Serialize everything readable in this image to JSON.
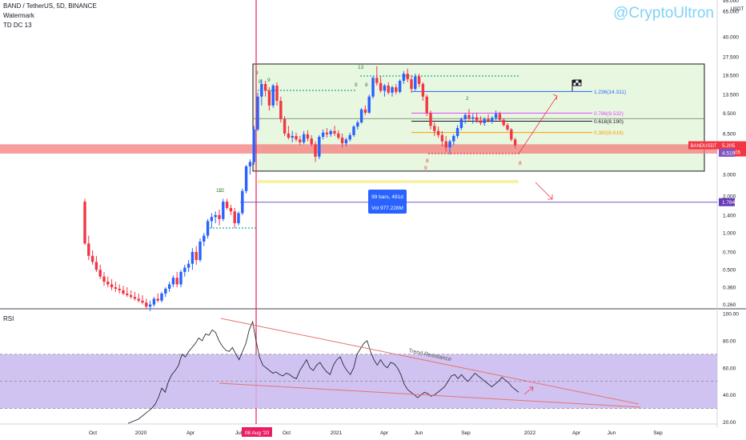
{
  "header": {
    "symbol_line": "BAND / TetherUS, 5D, BINANCE",
    "line2": "Watermark",
    "line3": "TD DC 13"
  },
  "watermark": "@CryptoUltron",
  "rsi_title": "RSI",
  "price_currency": "USDT",
  "colors": {
    "bull": "#2962ff",
    "bear": "#f23645",
    "channel_fill": "#e8f8e0",
    "support_band": "#f47c7c",
    "rsi_band": "#c9b8ef",
    "vertical_line": "#e91e63",
    "rsi_line": "#131722"
  },
  "chart_data": [
    {
      "type": "candlestick",
      "price_scale": "log",
      "y_ticks": [
        "65.000",
        "40.000",
        "27.500",
        "19.500",
        "13.500",
        "9.500",
        "6.500",
        "4.500",
        "3.000",
        "2.000",
        "1.400",
        "1.000",
        "0.700",
        "0.500",
        "0.360",
        "0.260"
      ],
      "y_ticks_top": [
        "95.000"
      ],
      "x_ticks": [
        "Oct",
        "2020",
        "Apr",
        "Jul",
        "Oct",
        "2021",
        "Apr",
        "Jun",
        "Sep",
        "2022",
        "Apr",
        "Jun",
        "Sep"
      ],
      "price_labels": [
        {
          "name": "BANDUSDT",
          "value": "5.205",
          "sub": "11:10:05",
          "color": "#f23645"
        },
        {
          "name": "",
          "value": "4.519",
          "color": "#7e57c2"
        },
        {
          "name": "",
          "value": "1.784",
          "color": "#673ab7"
        }
      ],
      "fib_levels": [
        {
          "label": "1.236(14.311)",
          "value": 14.311,
          "color": "#2962ff"
        },
        {
          "label": "0.786(9.532)",
          "value": 9.532,
          "color": "#e040fb"
        },
        {
          "label": "0.618(8.190)",
          "value": 8.19,
          "color": "#131722"
        },
        {
          "label": "0.382(6.618)",
          "value": 6.618,
          "color": "#ff9800"
        }
      ],
      "measure": {
        "bars": "99 bars, 491d",
        "vol": "Vol 977.228M"
      },
      "date_label": "08 Aug '20",
      "channel": {
        "top": 24.0,
        "bottom": 3.2
      },
      "support_zone": [
        4.45,
        5.3
      ],
      "lines": {
        "mid": 8.6,
        "low_support": 1.784
      },
      "td_labels": [
        "9",
        "8",
        "9",
        "12",
        "12",
        "13",
        "9",
        "8",
        "2",
        "8",
        "9",
        "8"
      ],
      "candles": [
        [
          0,
          1.8,
          1.9,
          0.8,
          0.82
        ],
        [
          1,
          0.82,
          0.95,
          0.6,
          0.65
        ],
        [
          2,
          0.65,
          0.72,
          0.55,
          0.58
        ],
        [
          3,
          0.58,
          0.65,
          0.48,
          0.5
        ],
        [
          4,
          0.5,
          0.55,
          0.42,
          0.44
        ],
        [
          5,
          0.44,
          0.48,
          0.37,
          0.4
        ],
        [
          6,
          0.4,
          0.44,
          0.36,
          0.38
        ],
        [
          7,
          0.38,
          0.42,
          0.34,
          0.36
        ],
        [
          8,
          0.36,
          0.4,
          0.33,
          0.35
        ],
        [
          9,
          0.35,
          0.38,
          0.32,
          0.34
        ],
        [
          10,
          0.34,
          0.37,
          0.31,
          0.32
        ],
        [
          11,
          0.32,
          0.36,
          0.3,
          0.31
        ],
        [
          12,
          0.31,
          0.34,
          0.29,
          0.3
        ],
        [
          13,
          0.3,
          0.33,
          0.28,
          0.29
        ],
        [
          14,
          0.29,
          0.32,
          0.27,
          0.28
        ],
        [
          15,
          0.28,
          0.31,
          0.26,
          0.27
        ],
        [
          16,
          0.27,
          0.29,
          0.24,
          0.25
        ],
        [
          17,
          0.25,
          0.28,
          0.23,
          0.26
        ],
        [
          18,
          0.26,
          0.3,
          0.25,
          0.29
        ],
        [
          19,
          0.29,
          0.32,
          0.27,
          0.28
        ],
        [
          20,
          0.28,
          0.33,
          0.27,
          0.32
        ],
        [
          21,
          0.32,
          0.36,
          0.3,
          0.35
        ],
        [
          22,
          0.35,
          0.4,
          0.33,
          0.38
        ],
        [
          23,
          0.38,
          0.45,
          0.36,
          0.43
        ],
        [
          24,
          0.43,
          0.48,
          0.36,
          0.38
        ],
        [
          25,
          0.38,
          0.5,
          0.36,
          0.48
        ],
        [
          26,
          0.48,
          0.55,
          0.44,
          0.52
        ],
        [
          27,
          0.52,
          0.6,
          0.48,
          0.56
        ],
        [
          28,
          0.56,
          0.75,
          0.5,
          0.7
        ],
        [
          29,
          0.7,
          0.78,
          0.55,
          0.6
        ],
        [
          30,
          0.6,
          0.9,
          0.58,
          0.85
        ],
        [
          31,
          0.85,
          1.0,
          0.78,
          0.95
        ],
        [
          32,
          0.95,
          1.3,
          0.9,
          1.25
        ],
        [
          33,
          1.25,
          1.45,
          1.1,
          1.35
        ],
        [
          34,
          1.35,
          1.5,
          1.2,
          1.4
        ],
        [
          35,
          1.4,
          1.55,
          1.15,
          1.3
        ],
        [
          36,
          1.3,
          1.9,
          1.25,
          1.8
        ],
        [
          37,
          1.8,
          1.9,
          1.55,
          1.6
        ],
        [
          38,
          1.6,
          1.7,
          1.4,
          1.5
        ],
        [
          39,
          1.5,
          1.6,
          1.1,
          1.2
        ],
        [
          40,
          1.2,
          1.5,
          1.15,
          1.45
        ],
        [
          41,
          1.45,
          2.3,
          1.4,
          2.2
        ],
        [
          42,
          2.2,
          3.6,
          2.1,
          3.5
        ],
        [
          43,
          3.5,
          4.0,
          3.0,
          3.8
        ],
        [
          44,
          3.8,
          7.5,
          3.6,
          7.0
        ],
        [
          45,
          7.0,
          14.0,
          6.8,
          13.0
        ],
        [
          46,
          13.0,
          18.0,
          11.0,
          16.5
        ],
        [
          47,
          16.5,
          17.5,
          13.0,
          14.5
        ],
        [
          48,
          14.5,
          15.5,
          10.0,
          11.0
        ],
        [
          49,
          11.0,
          16.5,
          10.5,
          16.0
        ],
        [
          50,
          16.0,
          17.0,
          11.0,
          12.0
        ],
        [
          51,
          12.0,
          13.0,
          8.0,
          8.5
        ],
        [
          52,
          8.5,
          9.0,
          6.2,
          6.5
        ],
        [
          53,
          6.5,
          7.5,
          5.8,
          6.0
        ],
        [
          54,
          6.0,
          6.8,
          5.5,
          6.2
        ],
        [
          55,
          6.2,
          6.6,
          5.6,
          5.8
        ],
        [
          56,
          5.8,
          6.2,
          5.2,
          5.5
        ],
        [
          57,
          5.5,
          6.8,
          5.3,
          6.4
        ],
        [
          58,
          6.4,
          6.9,
          5.6,
          5.9
        ],
        [
          59,
          5.9,
          6.3,
          5.1,
          5.3
        ],
        [
          60,
          5.3,
          5.6,
          3.8,
          4.2
        ],
        [
          61,
          4.2,
          6.3,
          4.0,
          6.1
        ],
        [
          62,
          6.1,
          7.0,
          5.8,
          6.6
        ],
        [
          63,
          6.6,
          7.2,
          6.0,
          6.4
        ],
        [
          64,
          6.4,
          7.0,
          6.1,
          6.8
        ],
        [
          65,
          6.8,
          7.5,
          6.2,
          6.5
        ],
        [
          66,
          6.5,
          6.9,
          5.8,
          6.0
        ],
        [
          67,
          6.0,
          6.5,
          5.0,
          5.4
        ],
        [
          68,
          5.4,
          6.0,
          5.1,
          5.8
        ],
        [
          69,
          5.8,
          6.6,
          5.6,
          6.3
        ],
        [
          70,
          6.3,
          7.6,
          6.1,
          7.4
        ],
        [
          71,
          7.4,
          8.3,
          7.0,
          8.0
        ],
        [
          72,
          8.0,
          10.5,
          7.8,
          10.2
        ],
        [
          73,
          10.2,
          11.0,
          9.2,
          9.6
        ],
        [
          74,
          9.6,
          13.5,
          9.4,
          13.0
        ],
        [
          75,
          13.0,
          19.0,
          12.5,
          18.5
        ],
        [
          76,
          18.5,
          23.0,
          16.0,
          16.8
        ],
        [
          77,
          16.8,
          19.0,
          14.0,
          14.5
        ],
        [
          78,
          14.5,
          16.5,
          13.0,
          16.0
        ],
        [
          79,
          16.0,
          17.0,
          13.5,
          14.0
        ],
        [
          80,
          14.0,
          16.0,
          13.0,
          15.5
        ],
        [
          81,
          15.5,
          16.5,
          13.5,
          14.2
        ],
        [
          82,
          14.2,
          18.0,
          13.8,
          17.5
        ],
        [
          83,
          17.5,
          21.0,
          16.5,
          20.0
        ],
        [
          84,
          20.0,
          22.0,
          17.0,
          18.0
        ],
        [
          85,
          18.0,
          19.5,
          14.0,
          15.0
        ],
        [
          86,
          15.0,
          20.0,
          14.5,
          19.0
        ],
        [
          87,
          19.0,
          20.0,
          15.5,
          16.5
        ],
        [
          88,
          16.5,
          17.0,
          12.0,
          13.0
        ],
        [
          89,
          13.0,
          13.5,
          9.0,
          9.5
        ],
        [
          90,
          9.5,
          10.0,
          7.0,
          7.5
        ],
        [
          91,
          7.5,
          8.0,
          6.2,
          6.8
        ],
        [
          92,
          6.8,
          7.4,
          6.0,
          6.3
        ],
        [
          93,
          6.3,
          6.8,
          5.1,
          5.6
        ],
        [
          94,
          5.6,
          6.2,
          4.6,
          5.0
        ],
        [
          95,
          5.0,
          5.8,
          4.4,
          5.6
        ],
        [
          96,
          5.6,
          6.4,
          5.2,
          6.2
        ],
        [
          97,
          6.2,
          7.6,
          5.9,
          7.2
        ],
        [
          98,
          7.2,
          8.8,
          6.9,
          8.5
        ],
        [
          99,
          8.5,
          9.5,
          7.8,
          9.2
        ],
        [
          100,
          9.2,
          10.3,
          8.3,
          8.6
        ],
        [
          101,
          8.6,
          9.4,
          7.8,
          8.8
        ],
        [
          102,
          8.8,
          9.6,
          7.9,
          8.3
        ],
        [
          103,
          8.3,
          9.0,
          7.6,
          7.9
        ],
        [
          104,
          7.9,
          8.8,
          7.5,
          8.5
        ],
        [
          105,
          8.5,
          9.3,
          8.0,
          8.2
        ],
        [
          106,
          8.2,
          9.0,
          7.8,
          8.7
        ],
        [
          107,
          8.7,
          10.0,
          8.3,
          9.4
        ],
        [
          108,
          9.4,
          9.8,
          8.2,
          8.4
        ],
        [
          109,
          8.4,
          8.6,
          7.4,
          7.6
        ],
        [
          110,
          7.6,
          7.9,
          6.8,
          7.0
        ],
        [
          111,
          7.0,
          7.2,
          5.6,
          5.8
        ],
        [
          112,
          5.8,
          6.0,
          4.9,
          5.2
        ]
      ]
    },
    {
      "type": "line",
      "title": "RSI",
      "y_ticks": [
        "100.00",
        "80.00",
        "60.00",
        "40.00",
        "20.00"
      ],
      "ylim": [
        15,
        100
      ],
      "band": [
        30,
        70
      ],
      "midline": 50,
      "annotation": "Trend Resistance",
      "series": [
        {
          "values": [
            19,
            20,
            21,
            22,
            24,
            26,
            28,
            30,
            33,
            38,
            45,
            42,
            50,
            55,
            58,
            62,
            70,
            68,
            72,
            75,
            78,
            82,
            80,
            85,
            84,
            88,
            86,
            80,
            76,
            73,
            72,
            75,
            70,
            66,
            72,
            78,
            88,
            94,
            80,
            68,
            62,
            60,
            58,
            56,
            57,
            55,
            54,
            56,
            55,
            53,
            52,
            58,
            62,
            66,
            60,
            58,
            62,
            64,
            60,
            57,
            55,
            62,
            66,
            68,
            62,
            58,
            55,
            60,
            70,
            74,
            78,
            80,
            72,
            66,
            62,
            66,
            62,
            60,
            64,
            63,
            60,
            55,
            48,
            44,
            42,
            40,
            38,
            40,
            42,
            41,
            39,
            40,
            42,
            44,
            46,
            50,
            54,
            55,
            52,
            55,
            52,
            50,
            53,
            56,
            54,
            52,
            50,
            48,
            46,
            48,
            50,
            53,
            51,
            49,
            46,
            44,
            42
          ]
        }
      ]
    }
  ]
}
